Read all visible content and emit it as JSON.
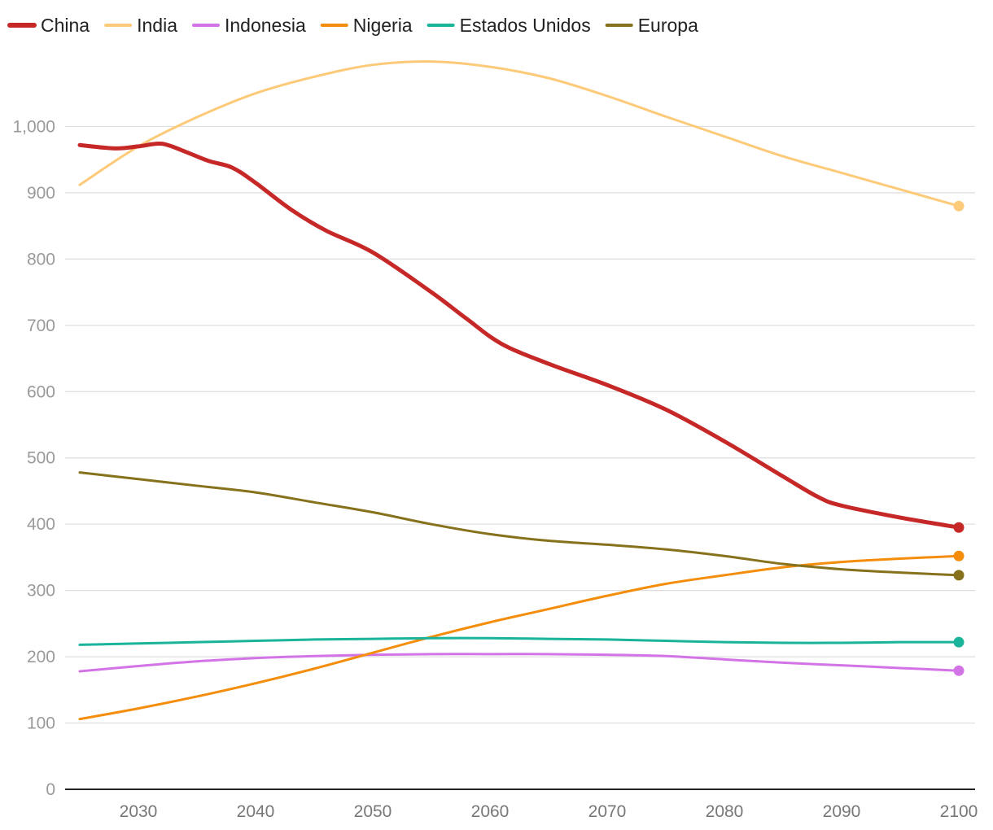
{
  "chart_data": {
    "type": "line",
    "title": "",
    "xlabel": "",
    "ylabel": "",
    "xlim": [
      2025,
      2100
    ],
    "ylim": [
      0,
      1100
    ],
    "x_ticks": [
      2030,
      2040,
      2050,
      2060,
      2070,
      2080,
      2090,
      2100
    ],
    "y_ticks": [
      0,
      100,
      200,
      300,
      400,
      500,
      600,
      700,
      800,
      900,
      1000
    ],
    "y_tick_labels": [
      "0",
      "100",
      "200",
      "300",
      "400",
      "500",
      "600",
      "700",
      "800",
      "900",
      "1,000"
    ],
    "x_tick_labels": [
      "2030",
      "2040",
      "2050",
      "2060",
      "2070",
      "2080",
      "2090",
      "2100"
    ],
    "grid": true,
    "legend_position": "top-left",
    "series": [
      {
        "name": "China",
        "color": "#c62828",
        "emphasis": true,
        "x": [
          2025,
          2028,
          2030,
          2032,
          2034,
          2036,
          2038,
          2040,
          2043,
          2046,
          2050,
          2055,
          2058,
          2061,
          2065,
          2070,
          2075,
          2080,
          2085,
          2088,
          2090,
          2095,
          2100
        ],
        "y": [
          972,
          967,
          970,
          974,
          962,
          948,
          938,
          915,
          875,
          843,
          810,
          750,
          710,
          672,
          642,
          610,
          573,
          525,
          472,
          441,
          428,
          410,
          395
        ]
      },
      {
        "name": "India",
        "color": "#fdca79",
        "emphasis": false,
        "x": [
          2025,
          2030,
          2035,
          2040,
          2045,
          2050,
          2055,
          2060,
          2065,
          2070,
          2075,
          2080,
          2085,
          2090,
          2095,
          2100
        ],
        "y": [
          912,
          970,
          1014,
          1050,
          1075,
          1093,
          1098,
          1090,
          1073,
          1046,
          1015,
          985,
          955,
          930,
          905,
          880
        ]
      },
      {
        "name": "Indonesia",
        "color": "#d374e6",
        "emphasis": false,
        "x": [
          2025,
          2030,
          2035,
          2040,
          2045,
          2050,
          2055,
          2060,
          2065,
          2070,
          2075,
          2080,
          2085,
          2090,
          2095,
          2100
        ],
        "y": [
          178,
          186,
          193,
          198,
          201,
          203,
          204,
          204,
          204,
          203,
          201,
          196,
          191,
          187,
          183,
          179
        ]
      },
      {
        "name": "Nigeria",
        "color": "#f38d0b",
        "emphasis": false,
        "x": [
          2025,
          2030,
          2035,
          2040,
          2045,
          2050,
          2055,
          2060,
          2065,
          2070,
          2075,
          2080,
          2085,
          2090,
          2095,
          2100
        ],
        "y": [
          106,
          122,
          140,
          160,
          182,
          206,
          230,
          252,
          272,
          292,
          310,
          323,
          335,
          343,
          348,
          352
        ]
      },
      {
        "name": "Estados Unidos",
        "color": "#19b49a",
        "emphasis": false,
        "x": [
          2025,
          2030,
          2035,
          2040,
          2045,
          2050,
          2055,
          2060,
          2065,
          2070,
          2075,
          2080,
          2085,
          2090,
          2095,
          2100
        ],
        "y": [
          218,
          220,
          222,
          224,
          226,
          227,
          228,
          228,
          227,
          226,
          224,
          222,
          221,
          221,
          222,
          222
        ]
      },
      {
        "name": "Europa",
        "color": "#86711c",
        "emphasis": false,
        "x": [
          2025,
          2030,
          2035,
          2040,
          2045,
          2050,
          2055,
          2060,
          2065,
          2070,
          2075,
          2080,
          2085,
          2090,
          2095,
          2100
        ],
        "y": [
          478,
          468,
          458,
          448,
          433,
          418,
          400,
          385,
          375,
          369,
          362,
          352,
          340,
          332,
          327,
          323
        ]
      }
    ]
  }
}
